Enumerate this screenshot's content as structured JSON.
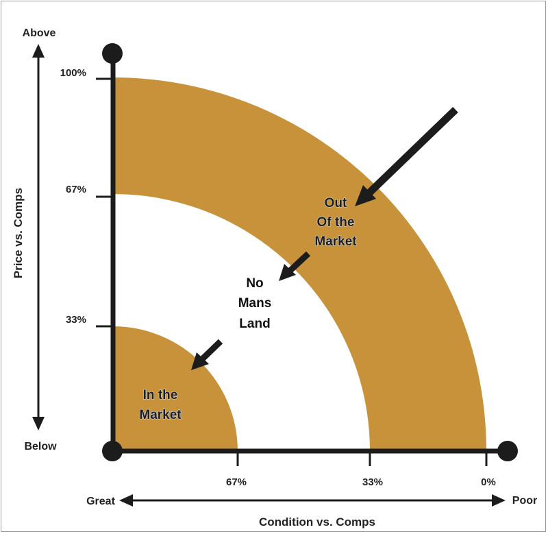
{
  "colors": {
    "band": "#c8923a",
    "ink": "#1c1c1c",
    "background": "#ffffff"
  },
  "y_axis": {
    "title": "Price vs. Comps",
    "top_label": "Above",
    "bottom_label": "Below",
    "ticks": [
      "100%",
      "67%",
      "33%"
    ]
  },
  "x_axis": {
    "title": "Condition vs. Comps",
    "left_label": "Great",
    "right_label": "Poor",
    "ticks": [
      "67%",
      "33%",
      "0%"
    ]
  },
  "zones": {
    "out_of_market": [
      "Out",
      "Of the",
      "Market"
    ],
    "no_mans_land": [
      "No",
      "Mans",
      "Land"
    ],
    "in_the_market": [
      "In the",
      "Market"
    ]
  }
}
